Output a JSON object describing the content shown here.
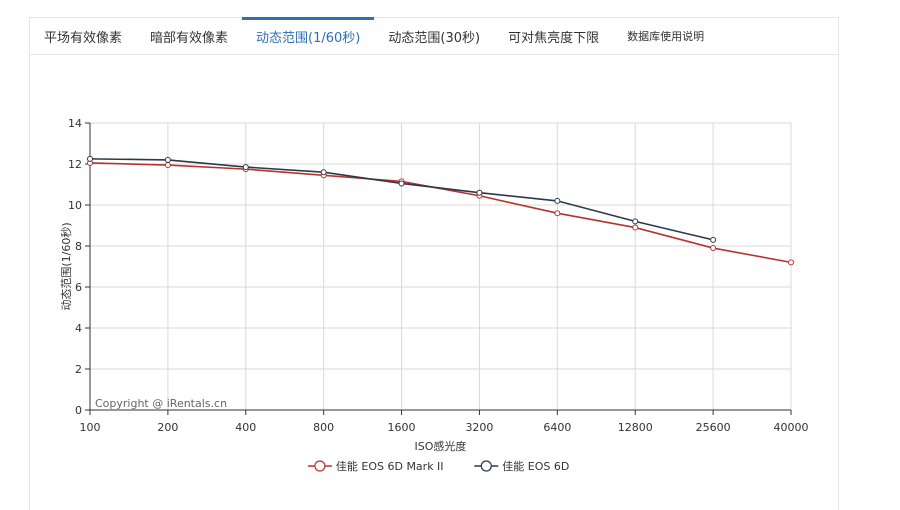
{
  "tabs": [
    {
      "label": "平场有效像素",
      "active": false
    },
    {
      "label": "暗部有效像素",
      "active": false
    },
    {
      "label": "动态范围(1/60秒)",
      "active": true
    },
    {
      "label": "动态范围(30秒)",
      "active": false
    },
    {
      "label": "可对焦亮度下限",
      "active": false
    },
    {
      "label": "数据库使用说明",
      "active": false
    }
  ],
  "chart_data": {
    "type": "line",
    "title": "",
    "xlabel": "ISO感光度",
    "ylabel": "动态范围(1/60秒)",
    "categories": [
      "100",
      "200",
      "400",
      "800",
      "1600",
      "3200",
      "6400",
      "12800",
      "25600",
      "40000"
    ],
    "ylim": [
      0,
      14
    ],
    "yticks": [
      0,
      2,
      4,
      6,
      8,
      10,
      12,
      14
    ],
    "grid": true,
    "legend_position": "bottom",
    "watermark": "Copyright @ iRentals.cn",
    "series": [
      {
        "name": "佳能 EOS 6D Mark II",
        "color": "#b83232",
        "values": [
          12.05,
          11.95,
          11.75,
          11.45,
          11.15,
          10.45,
          9.6,
          8.9,
          7.9,
          7.2
        ]
      },
      {
        "name": "佳能 EOS 6D",
        "color": "#2b3a4a",
        "values": [
          12.25,
          12.2,
          11.85,
          11.6,
          11.05,
          10.6,
          10.2,
          9.2,
          8.3,
          null
        ]
      }
    ]
  }
}
